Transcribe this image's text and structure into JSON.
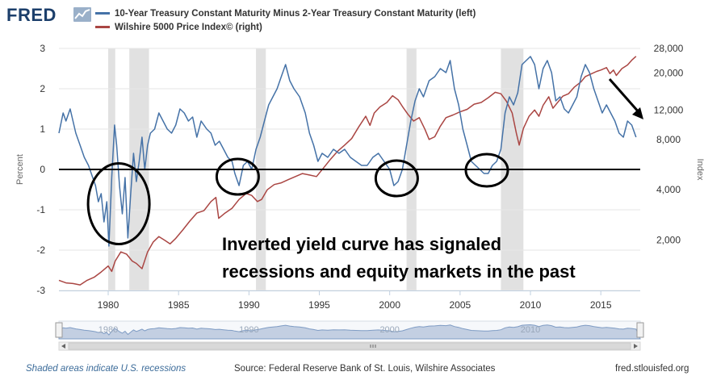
{
  "brand": {
    "logo_text": "FRED",
    "logo_icon": "chart-line-icon"
  },
  "footer": {
    "recession_note": "Shaded areas indicate U.S. recessions",
    "source": "Source: Federal Reserve Bank of St. Louis, Wilshire Associates",
    "site": "fred.stlouisfed.org"
  },
  "overlay_text": {
    "line1": "Inverted yield curve has signaled",
    "line2": "recessions and equity markets in the past"
  },
  "colors": {
    "series_blue": "#4572a7",
    "series_red": "#aa4643",
    "recession_shade": "#e1e1e1",
    "axis_text": "#333333",
    "navigator_fill": "#c3cfe2"
  },
  "chart_data": {
    "type": "line",
    "series": [
      {
        "name": "10-Year Treasury Constant Maturity Minus 2-Year Treasury Constant Maturity (left)",
        "axis": "left",
        "color": "#4572a7",
        "points": [
          [
            1976.5,
            0.9
          ],
          [
            1976.8,
            1.4
          ],
          [
            1977.0,
            1.2
          ],
          [
            1977.3,
            1.5
          ],
          [
            1977.7,
            0.9
          ],
          [
            1978.0,
            0.6
          ],
          [
            1978.3,
            0.3
          ],
          [
            1978.6,
            0.1
          ],
          [
            1978.9,
            -0.2
          ],
          [
            1979.1,
            -0.4
          ],
          [
            1979.3,
            -0.8
          ],
          [
            1979.5,
            -0.6
          ],
          [
            1979.7,
            -1.3
          ],
          [
            1979.9,
            -0.8
          ],
          [
            1980.05,
            -1.9
          ],
          [
            1980.25,
            -0.2
          ],
          [
            1980.45,
            1.1
          ],
          [
            1980.6,
            0.6
          ],
          [
            1980.8,
            -0.4
          ],
          [
            1981.0,
            -1.1
          ],
          [
            1981.2,
            -0.2
          ],
          [
            1981.4,
            -1.7
          ],
          [
            1981.6,
            -0.6
          ],
          [
            1981.8,
            0.4
          ],
          [
            1982.0,
            -0.3
          ],
          [
            1982.2,
            0.2
          ],
          [
            1982.4,
            0.8
          ],
          [
            1982.6,
            0.0
          ],
          [
            1982.8,
            0.6
          ],
          [
            1983.0,
            0.9
          ],
          [
            1983.3,
            1.0
          ],
          [
            1983.6,
            1.4
          ],
          [
            1983.9,
            1.2
          ],
          [
            1984.2,
            1.0
          ],
          [
            1984.5,
            0.9
          ],
          [
            1984.8,
            1.1
          ],
          [
            1985.1,
            1.5
          ],
          [
            1985.4,
            1.4
          ],
          [
            1985.7,
            1.2
          ],
          [
            1986.0,
            1.3
          ],
          [
            1986.3,
            0.8
          ],
          [
            1986.6,
            1.2
          ],
          [
            1987.0,
            1.0
          ],
          [
            1987.3,
            0.9
          ],
          [
            1987.6,
            0.6
          ],
          [
            1987.9,
            0.7
          ],
          [
            1988.2,
            0.5
          ],
          [
            1988.5,
            0.3
          ],
          [
            1988.8,
            0.2
          ],
          [
            1989.0,
            -0.1
          ],
          [
            1989.3,
            -0.4
          ],
          [
            1989.6,
            0.1
          ],
          [
            1989.9,
            0.2
          ],
          [
            1990.2,
            0.0
          ],
          [
            1990.5,
            0.5
          ],
          [
            1990.8,
            0.8
          ],
          [
            1991.1,
            1.2
          ],
          [
            1991.4,
            1.6
          ],
          [
            1991.7,
            1.8
          ],
          [
            1992.0,
            2.0
          ],
          [
            1992.3,
            2.3
          ],
          [
            1992.6,
            2.6
          ],
          [
            1992.9,
            2.2
          ],
          [
            1993.2,
            2.0
          ],
          [
            1993.6,
            1.8
          ],
          [
            1994.0,
            1.4
          ],
          [
            1994.3,
            0.9
          ],
          [
            1994.6,
            0.6
          ],
          [
            1994.9,
            0.2
          ],
          [
            1995.2,
            0.4
          ],
          [
            1995.6,
            0.3
          ],
          [
            1996.0,
            0.5
          ],
          [
            1996.4,
            0.4
          ],
          [
            1996.8,
            0.5
          ],
          [
            1997.2,
            0.3
          ],
          [
            1997.6,
            0.2
          ],
          [
            1998.0,
            0.1
          ],
          [
            1998.4,
            0.1
          ],
          [
            1998.8,
            0.3
          ],
          [
            1999.2,
            0.4
          ],
          [
            1999.6,
            0.2
          ],
          [
            2000.0,
            0.0
          ],
          [
            2000.3,
            -0.4
          ],
          [
            2000.6,
            -0.3
          ],
          [
            2000.9,
            0.0
          ],
          [
            2001.2,
            0.6
          ],
          [
            2001.5,
            1.2
          ],
          [
            2001.8,
            1.7
          ],
          [
            2002.1,
            2.0
          ],
          [
            2002.4,
            1.8
          ],
          [
            2002.8,
            2.2
          ],
          [
            2003.2,
            2.3
          ],
          [
            2003.6,
            2.5
          ],
          [
            2004.0,
            2.4
          ],
          [
            2004.3,
            2.7
          ],
          [
            2004.6,
            2.0
          ],
          [
            2004.9,
            1.6
          ],
          [
            2005.2,
            1.0
          ],
          [
            2005.5,
            0.6
          ],
          [
            2005.8,
            0.2
          ],
          [
            2006.1,
            0.1
          ],
          [
            2006.4,
            0.0
          ],
          [
            2006.7,
            -0.1
          ],
          [
            2007.0,
            -0.1
          ],
          [
            2007.3,
            0.1
          ],
          [
            2007.6,
            0.2
          ],
          [
            2007.9,
            0.5
          ],
          [
            2008.2,
            1.4
          ],
          [
            2008.5,
            1.8
          ],
          [
            2008.8,
            1.6
          ],
          [
            2009.1,
            1.9
          ],
          [
            2009.4,
            2.6
          ],
          [
            2009.7,
            2.7
          ],
          [
            2010.0,
            2.8
          ],
          [
            2010.3,
            2.6
          ],
          [
            2010.6,
            2.0
          ],
          [
            2010.9,
            2.5
          ],
          [
            2011.2,
            2.7
          ],
          [
            2011.5,
            2.4
          ],
          [
            2011.8,
            1.7
          ],
          [
            2012.1,
            1.8
          ],
          [
            2012.4,
            1.5
          ],
          [
            2012.7,
            1.4
          ],
          [
            2013.0,
            1.6
          ],
          [
            2013.3,
            1.8
          ],
          [
            2013.6,
            2.3
          ],
          [
            2013.9,
            2.6
          ],
          [
            2014.2,
            2.4
          ],
          [
            2014.5,
            2.0
          ],
          [
            2014.8,
            1.7
          ],
          [
            2015.1,
            1.4
          ],
          [
            2015.4,
            1.6
          ],
          [
            2015.7,
            1.4
          ],
          [
            2016.0,
            1.2
          ],
          [
            2016.3,
            0.9
          ],
          [
            2016.6,
            0.8
          ],
          [
            2016.9,
            1.2
          ],
          [
            2017.2,
            1.1
          ],
          [
            2017.5,
            0.8
          ]
        ]
      },
      {
        "name": "Wilshire 5000 Price Index© (right)",
        "axis": "right",
        "color": "#aa4643",
        "points": [
          [
            1976.5,
            1150
          ],
          [
            1977.0,
            1110
          ],
          [
            1977.5,
            1100
          ],
          [
            1978.0,
            1080
          ],
          [
            1978.5,
            1150
          ],
          [
            1979.0,
            1200
          ],
          [
            1979.5,
            1290
          ],
          [
            1980.0,
            1400
          ],
          [
            1980.25,
            1300
          ],
          [
            1980.5,
            1500
          ],
          [
            1980.9,
            1700
          ],
          [
            1981.3,
            1650
          ],
          [
            1981.7,
            1500
          ],
          [
            1982.0,
            1450
          ],
          [
            1982.4,
            1350
          ],
          [
            1982.8,
            1700
          ],
          [
            1983.2,
            1950
          ],
          [
            1983.6,
            2100
          ],
          [
            1984.0,
            2000
          ],
          [
            1984.4,
            1900
          ],
          [
            1984.8,
            2050
          ],
          [
            1985.3,
            2300
          ],
          [
            1985.8,
            2600
          ],
          [
            1986.3,
            2900
          ],
          [
            1986.8,
            3000
          ],
          [
            1987.3,
            3400
          ],
          [
            1987.65,
            3600
          ],
          [
            1987.85,
            2700
          ],
          [
            1988.3,
            2900
          ],
          [
            1988.8,
            3100
          ],
          [
            1989.3,
            3500
          ],
          [
            1989.8,
            3800
          ],
          [
            1990.2,
            3700
          ],
          [
            1990.6,
            3400
          ],
          [
            1990.9,
            3500
          ],
          [
            1991.3,
            4000
          ],
          [
            1991.8,
            4300
          ],
          [
            1992.3,
            4400
          ],
          [
            1992.8,
            4600
          ],
          [
            1993.3,
            4800
          ],
          [
            1993.8,
            5000
          ],
          [
            1994.3,
            4900
          ],
          [
            1994.8,
            4800
          ],
          [
            1995.3,
            5400
          ],
          [
            1995.8,
            6100
          ],
          [
            1996.3,
            6800
          ],
          [
            1996.8,
            7400
          ],
          [
            1997.3,
            8100
          ],
          [
            1997.8,
            9500
          ],
          [
            1998.3,
            11000
          ],
          [
            1998.6,
            9700
          ],
          [
            1998.9,
            11500
          ],
          [
            1999.3,
            12500
          ],
          [
            1999.8,
            13300
          ],
          [
            2000.2,
            14600
          ],
          [
            2000.6,
            13800
          ],
          [
            2000.9,
            12600
          ],
          [
            2001.3,
            11300
          ],
          [
            2001.7,
            10300
          ],
          [
            2002.1,
            10800
          ],
          [
            2002.5,
            9200
          ],
          [
            2002.8,
            8000
          ],
          [
            2003.2,
            8300
          ],
          [
            2003.6,
            9600
          ],
          [
            2004.0,
            10800
          ],
          [
            2004.5,
            11200
          ],
          [
            2005.0,
            11700
          ],
          [
            2005.5,
            12100
          ],
          [
            2006.0,
            13000
          ],
          [
            2006.5,
            13300
          ],
          [
            2007.0,
            14200
          ],
          [
            2007.5,
            15300
          ],
          [
            2007.9,
            15000
          ],
          [
            2008.3,
            13500
          ],
          [
            2008.7,
            11500
          ],
          [
            2009.0,
            8700
          ],
          [
            2009.2,
            7400
          ],
          [
            2009.5,
            9300
          ],
          [
            2009.9,
            11000
          ],
          [
            2010.3,
            12000
          ],
          [
            2010.6,
            11000
          ],
          [
            2010.9,
            12800
          ],
          [
            2011.3,
            14400
          ],
          [
            2011.6,
            12300
          ],
          [
            2011.9,
            13200
          ],
          [
            2012.3,
            14500
          ],
          [
            2012.7,
            15000
          ],
          [
            2013.1,
            16400
          ],
          [
            2013.6,
            17700
          ],
          [
            2013.9,
            19000
          ],
          [
            2014.3,
            19700
          ],
          [
            2014.7,
            20400
          ],
          [
            2015.0,
            20800
          ],
          [
            2015.4,
            21500
          ],
          [
            2015.65,
            19800
          ],
          [
            2015.9,
            20800
          ],
          [
            2016.1,
            19300
          ],
          [
            2016.5,
            21200
          ],
          [
            2016.9,
            22300
          ],
          [
            2017.2,
            23800
          ],
          [
            2017.5,
            25100
          ]
        ]
      }
    ],
    "recessions": [
      [
        1980.0,
        1980.5
      ],
      [
        1981.5,
        1982.9
      ],
      [
        1990.5,
        1991.2
      ],
      [
        2001.2,
        2001.9
      ],
      [
        2007.9,
        2009.5
      ]
    ],
    "x_range": [
      1976.5,
      2017.8
    ],
    "x_ticks": [
      "1980",
      "1985",
      "1990",
      "1995",
      "2000",
      "2005",
      "2010",
      "2015"
    ],
    "y_left": {
      "label": "Percent",
      "range": [
        -3,
        3
      ],
      "ticks": [
        "-3",
        "-2",
        "-1",
        "0",
        "1",
        "2",
        "3"
      ]
    },
    "y_right": {
      "label": "Index",
      "scale": "log",
      "range": [
        1000,
        28000
      ],
      "ticks": [
        "2,000",
        "4,000",
        "8,000",
        "12,000",
        "20,000",
        "28,000"
      ]
    },
    "navigator_ticks": [
      "1980",
      "1990",
      "2000",
      "2010"
    ],
    "annotations": [
      "circle",
      "circle",
      "circle",
      "circle",
      "arrow"
    ],
    "grid": "horizontal",
    "legend_position": "top-left"
  }
}
